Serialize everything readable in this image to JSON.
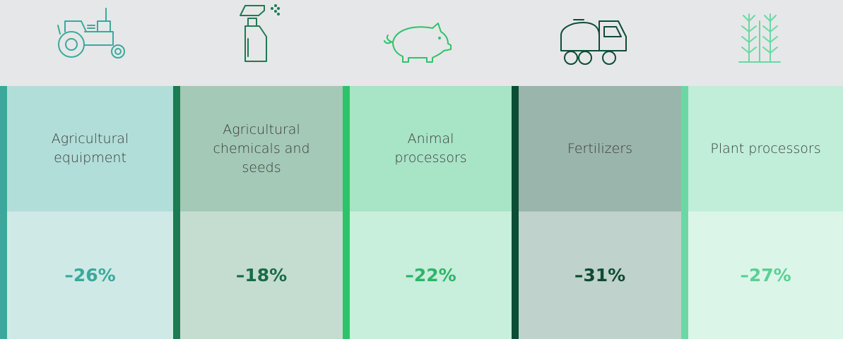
{
  "columns": [
    {
      "label": "Agricultural equipment",
      "value": "–26%"
    },
    {
      "label": "Agricultural chemicals and seeds",
      "value": "–18%"
    },
    {
      "label": "Animal processors",
      "value": "–22%"
    },
    {
      "label": "Fertilizers",
      "value": "–31%"
    },
    {
      "label": "Plant processors",
      "value": "–27%"
    }
  ]
}
